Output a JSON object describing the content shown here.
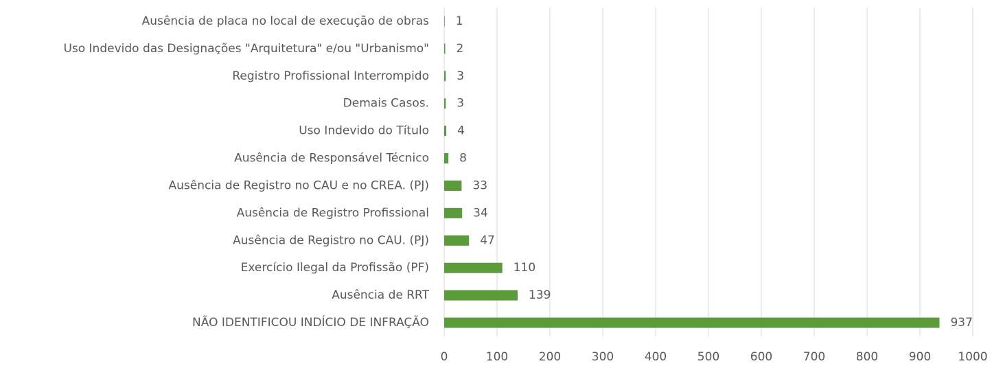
{
  "chart_data": {
    "type": "bar",
    "orientation": "horizontal",
    "categories": [
      "Ausência de placa no local de execução de obras",
      "Uso Indevido das Designações \"Arquitetura\" e/ou \"Urbanismo\"",
      "Registro Profissional Interrompido",
      "Demais Casos.",
      "Uso Indevido do Título",
      "Ausência de Responsável Técnico",
      "Ausência de Registro no CAU e no CREA. (PJ)",
      "Ausência de Registro Profissional",
      "Ausência de Registro no CAU. (PJ)",
      "Exercício Ilegal da Profissão (PF)",
      "Ausência de RRT",
      "NÃO IDENTIFICOU INDÍCIO DE INFRAÇÃO"
    ],
    "values": [
      1,
      2,
      3,
      3,
      4,
      8,
      33,
      34,
      47,
      110,
      139,
      937
    ],
    "color": "#5b9c3a",
    "xlim": [
      0,
      1000
    ],
    "xticks": [
      0,
      100,
      200,
      300,
      400,
      500,
      600,
      700,
      800,
      900,
      1000
    ],
    "grid": true
  }
}
